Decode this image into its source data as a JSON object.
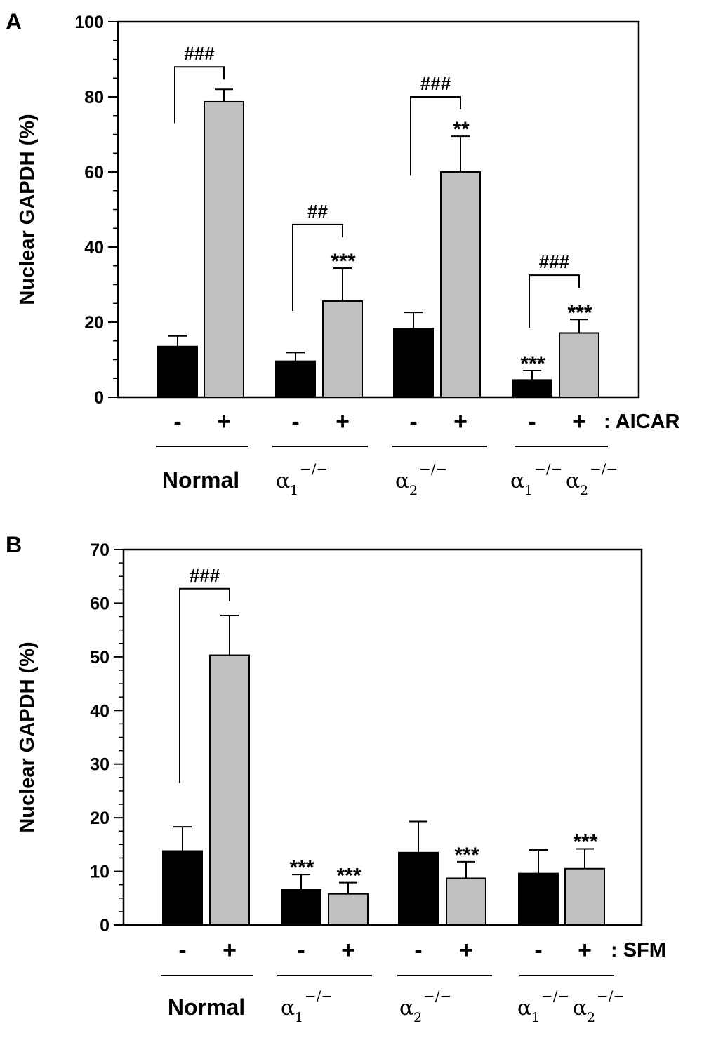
{
  "chart_data": [
    {
      "panel": "A",
      "type": "bar",
      "ylabel": "Nuclear GAPDH (%)",
      "ylim": [
        0,
        100
      ],
      "yticks": [
        0,
        20,
        40,
        60,
        80,
        100
      ],
      "treatment_label": ": AICAR",
      "sign_labels": [
        "-",
        "+"
      ],
      "series": [
        {
          "name": "-",
          "color": "#000000"
        },
        {
          "name": "+",
          "color": "#c0c0c0"
        }
      ],
      "groups": [
        {
          "name": "Normal",
          "values": [
            13.5,
            78.7
          ],
          "errors": [
            2.8,
            3.3
          ],
          "stars": [
            "",
            ""
          ],
          "bracket": "###",
          "bracket_y": [
            73,
            88
          ]
        },
        {
          "name": "α1−/−",
          "values": [
            9.6,
            25.6
          ],
          "errors": [
            2.3,
            8.8
          ],
          "stars": [
            "",
            "***"
          ],
          "bracket": "##",
          "bracket_y": [
            23,
            46
          ]
        },
        {
          "name": "α2−/−",
          "values": [
            18.3,
            60
          ],
          "errors": [
            4.3,
            9.5
          ],
          "stars": [
            "",
            "**"
          ],
          "bracket": "###",
          "bracket_y": [
            59,
            80
          ]
        },
        {
          "name": "α1−/−α2−/−",
          "values": [
            4.6,
            17.1
          ],
          "errors": [
            2.5,
            3.6
          ],
          "stars": [
            "***",
            "***"
          ],
          "bracket": "###",
          "bracket_y": [
            18.5,
            32.5
          ]
        }
      ]
    },
    {
      "panel": "B",
      "type": "bar",
      "ylabel": "Nuclear GAPDH (%)",
      "ylim": [
        0,
        70
      ],
      "yticks": [
        0,
        10,
        20,
        30,
        40,
        50,
        60,
        70
      ],
      "treatment_label": ": SFM",
      "sign_labels": [
        "-",
        "+"
      ],
      "series": [
        {
          "name": "-",
          "color": "#000000"
        },
        {
          "name": "+",
          "color": "#c0c0c0"
        }
      ],
      "groups": [
        {
          "name": "Normal",
          "values": [
            13.8,
            50.3
          ],
          "errors": [
            4.5,
            7.4
          ],
          "stars": [
            "",
            ""
          ],
          "bracket": "###",
          "bracket_y": [
            26.5,
            62.7
          ]
        },
        {
          "name": "α1−/−",
          "values": [
            6.6,
            5.8
          ],
          "errors": [
            2.8,
            2.1
          ],
          "stars": [
            "***",
            "***"
          ],
          "bracket": "",
          "bracket_y": []
        },
        {
          "name": "α2−/−",
          "values": [
            13.5,
            8.7
          ],
          "errors": [
            5.8,
            3.1
          ],
          "stars": [
            "",
            "***"
          ],
          "bracket": "",
          "bracket_y": []
        },
        {
          "name": "α1−/−α2−/−",
          "values": [
            9.6,
            10.5
          ],
          "errors": [
            4.4,
            3.7
          ],
          "stars": [
            "",
            "***"
          ],
          "bracket": "",
          "bracket_y": []
        }
      ]
    }
  ],
  "group_label_parts": {
    "alpha": "α",
    "sub1": "1",
    "sub2": "2",
    "sup": "−/−"
  }
}
